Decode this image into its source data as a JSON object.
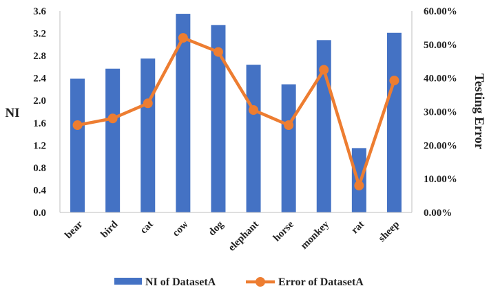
{
  "chart_data": {
    "type": "bar",
    "categories": [
      "bear",
      "bird",
      "cat",
      "cow",
      "dog",
      "elephant",
      "horse",
      "monkey",
      "rat",
      "sheep"
    ],
    "series": [
      {
        "name": "NI of DatasetA",
        "type": "bar",
        "axis": "left",
        "color": "#4472C4",
        "values": [
          2.39,
          2.57,
          2.75,
          3.55,
          3.35,
          2.64,
          2.29,
          3.08,
          1.15,
          3.21
        ]
      },
      {
        "name": "Error of DatasetA",
        "type": "line",
        "axis": "right",
        "color": "#ED7D31",
        "values": [
          0.26,
          0.28,
          0.325,
          0.52,
          0.478,
          0.305,
          0.26,
          0.425,
          0.08,
          0.393
        ]
      }
    ],
    "ylabel": "NI",
    "y2label": "Testing Error",
    "xlabel": "",
    "ylim": [
      0,
      3.6
    ],
    "y2lim": [
      0,
      0.6
    ],
    "yticks": [
      "0.0",
      "0.4",
      "0.8",
      "1.2",
      "1.6",
      "2.0",
      "2.4",
      "2.8",
      "3.2",
      "3.6"
    ],
    "y2ticks": [
      "0.00%",
      "10.00%",
      "20.00%",
      "30.00%",
      "40.00%",
      "50.00%",
      "60.00%"
    ],
    "legend": {
      "position": "bottom",
      "entries": [
        "NI of DatasetA",
        "Error of DatasetA"
      ]
    },
    "grid": false
  }
}
